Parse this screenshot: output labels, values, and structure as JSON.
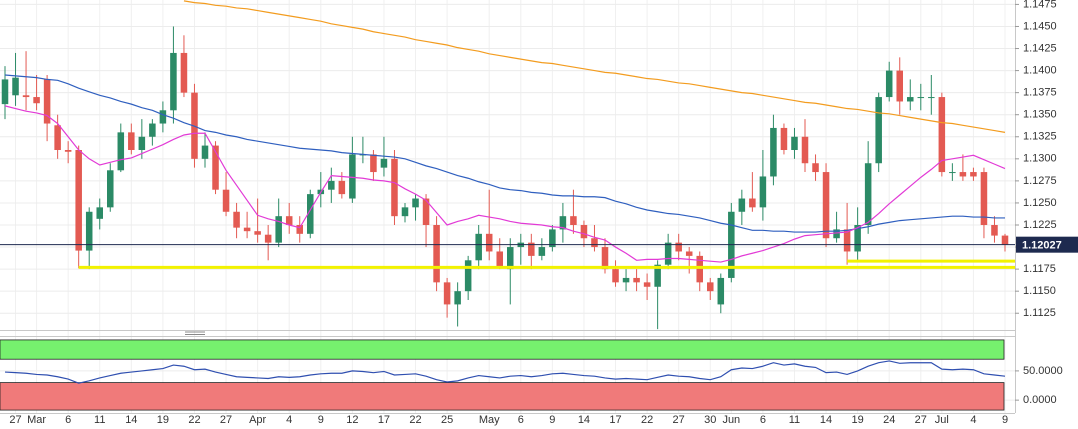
{
  "chart_data": [
    {
      "type": "candlestick",
      "categories": [
        null,
        "27",
        null,
        "Mar",
        null,
        null,
        "6",
        null,
        null,
        "11",
        null,
        null,
        "14",
        null,
        null,
        "19",
        null,
        null,
        "22",
        null,
        null,
        "27",
        null,
        null,
        "Apr",
        null,
        null,
        "4",
        null,
        null,
        "9",
        null,
        null,
        "12",
        null,
        null,
        "17",
        null,
        null,
        "22",
        null,
        null,
        "25",
        null,
        null,
        null,
        "May",
        null,
        null,
        "6",
        null,
        null,
        "9",
        null,
        null,
        "14",
        null,
        null,
        "17",
        null,
        null,
        "22",
        null,
        null,
        "27",
        null,
        null,
        "30",
        null,
        "Jun",
        null,
        null,
        "6",
        null,
        null,
        "11",
        null,
        null,
        "14",
        null,
        null,
        "19",
        null,
        null,
        "24",
        null,
        null,
        "27",
        null,
        "Jul",
        null,
        null,
        "4",
        null,
        null,
        "9"
      ],
      "open": [
        1.1362,
        1.1372,
        1.1372,
        1.137,
        1.139,
        1.1338,
        1.131,
        1.131,
        1.1196,
        1.1232,
        1.1245,
        1.1287,
        1.133,
        1.131,
        1.1325,
        1.134,
        1.1355,
        1.142,
        1.1375,
        1.13,
        1.1315,
        1.1265,
        1.124,
        1.1222,
        1.1218,
        1.1214,
        1.1205,
        1.1235,
        1.1225,
        1.1215,
        1.126,
        1.1265,
        1.1275,
        1.1255,
        1.1305,
        1.1305,
        1.129,
        1.13,
        1.1235,
        1.1245,
        1.1255,
        1.1225,
        1.116,
        1.1135,
        1.115,
        1.1185,
        1.1215,
        1.1195,
        1.1175,
        1.12,
        1.1205,
        1.119,
        1.12,
        1.122,
        1.1235,
        1.1225,
        1.121,
        1.12,
        1.1175,
        1.116,
        1.1165,
        1.116,
        1.1155,
        1.118,
        1.1205,
        1.1195,
        1.119,
        1.116,
        1.1135,
        1.1165,
        1.124,
        1.1255,
        1.1245,
        1.128,
        1.1335,
        1.131,
        1.1325,
        1.1295,
        1.1285,
        1.121,
        1.122,
        1.1195,
        1.1225,
        1.1295,
        1.137,
        1.14,
        1.1365,
        1.137,
        1.137,
        1.137,
        1.1285,
        1.1285,
        1.1285,
        1.1285,
        1.1225,
        1.1213
      ],
      "high": [
        1.1405,
        1.142,
        1.1422,
        1.1395,
        1.1395,
        1.135,
        1.132,
        1.1315,
        1.1245,
        1.1255,
        1.1295,
        1.134,
        1.134,
        1.1345,
        1.1345,
        1.1365,
        1.145,
        1.144,
        1.1385,
        1.133,
        1.132,
        1.1285,
        1.125,
        1.124,
        1.1255,
        1.1225,
        1.1255,
        1.125,
        1.1235,
        1.1265,
        1.1285,
        1.129,
        1.1285,
        1.1325,
        1.1325,
        1.131,
        1.1325,
        1.131,
        1.125,
        1.126,
        1.126,
        1.1235,
        1.1165,
        1.116,
        1.119,
        1.1225,
        1.1265,
        1.121,
        1.121,
        1.1215,
        1.1215,
        1.121,
        1.1225,
        1.125,
        1.1265,
        1.123,
        1.1225,
        1.121,
        1.1185,
        1.1175,
        1.1175,
        1.117,
        1.1185,
        1.1215,
        1.1215,
        1.12,
        1.1195,
        1.1165,
        1.117,
        1.125,
        1.1265,
        1.1285,
        1.131,
        1.135,
        1.134,
        1.1335,
        1.1345,
        1.1305,
        1.1295,
        1.124,
        1.125,
        1.1245,
        1.132,
        1.1375,
        1.141,
        1.1415,
        1.139,
        1.1385,
        1.1395,
        1.1375,
        1.1295,
        1.1305,
        1.129,
        1.129,
        1.1235,
        1.1215
      ],
      "low": [
        1.1345,
        1.136,
        1.1355,
        1.1355,
        1.132,
        1.13,
        1.1295,
        1.1176,
        1.1175,
        1.122,
        1.124,
        1.1285,
        1.1305,
        1.13,
        1.1315,
        1.133,
        1.134,
        1.137,
        1.129,
        1.129,
        1.126,
        1.1235,
        1.121,
        1.121,
        1.1205,
        1.1185,
        1.12,
        1.1215,
        1.1205,
        1.121,
        1.1245,
        1.125,
        1.1255,
        1.125,
        1.1295,
        1.1275,
        1.128,
        1.1225,
        1.1228,
        1.123,
        1.12,
        1.115,
        1.112,
        1.111,
        1.114,
        1.1175,
        1.1185,
        1.1175,
        1.1135,
        1.118,
        1.1175,
        1.1185,
        1.1195,
        1.1205,
        1.1215,
        1.12,
        1.1195,
        1.117,
        1.1155,
        1.115,
        1.115,
        1.114,
        1.1107,
        1.1175,
        1.1185,
        1.117,
        1.115,
        1.114,
        1.1125,
        1.116,
        1.1225,
        1.124,
        1.123,
        1.127,
        1.1305,
        1.13,
        1.1285,
        1.1275,
        1.12,
        1.1205,
        1.118,
        1.1185,
        1.1215,
        1.1285,
        1.1365,
        1.135,
        1.1355,
        1.1355,
        1.135,
        1.128,
        1.1275,
        1.1275,
        1.1275,
        1.121,
        1.1205,
        1.1195
      ],
      "close": [
        1.139,
        1.1392,
        1.137,
        1.1363,
        1.134,
        1.131,
        1.1308,
        1.1196,
        1.124,
        1.1245,
        1.1287,
        1.133,
        1.131,
        1.1325,
        1.134,
        1.1355,
        1.142,
        1.1375,
        1.13,
        1.1315,
        1.1265,
        1.124,
        1.1222,
        1.1218,
        1.1214,
        1.1205,
        1.1235,
        1.1225,
        1.1215,
        1.126,
        1.1265,
        1.1275,
        1.126,
        1.1305,
        1.1305,
        1.1285,
        1.13,
        1.1235,
        1.1245,
        1.1255,
        1.1225,
        1.116,
        1.1135,
        1.115,
        1.1185,
        1.1215,
        1.1195,
        1.1178,
        1.12,
        1.1205,
        1.119,
        1.12,
        1.122,
        1.1235,
        1.1225,
        1.121,
        1.12,
        1.1175,
        1.116,
        1.1165,
        1.116,
        1.1155,
        1.118,
        1.1205,
        1.1195,
        1.119,
        1.116,
        1.115,
        1.1165,
        1.124,
        1.1255,
        1.1245,
        1.128,
        1.1335,
        1.131,
        1.1325,
        1.1295,
        1.1285,
        1.121,
        1.122,
        1.1195,
        1.1225,
        1.1295,
        1.137,
        1.14,
        1.1365,
        1.137,
        1.137,
        1.137,
        1.1285,
        1.1285,
        1.128,
        1.128,
        1.1225,
        1.1213,
        1.12027
      ],
      "up_color": "#2b8a66",
      "down_color": "#e35a52",
      "series": [
        {
          "color": "#f39c1f",
          "values": [
            null,
            null,
            null,
            null,
            null,
            null,
            null,
            null,
            null,
            null,
            null,
            null,
            null,
            null,
            null,
            null,
            null,
            1.1479,
            1.1477,
            1.1476,
            1.1474,
            1.1473,
            1.1471,
            1.147,
            1.1468,
            1.1466,
            1.1464,
            1.1462,
            1.146,
            1.1458,
            1.1456,
            1.1453,
            1.1451,
            1.1449,
            1.1447,
            1.1444,
            1.1442,
            1.144,
            1.1438,
            1.1435,
            1.1433,
            1.1431,
            1.1429,
            1.1426,
            1.1424,
            1.1422,
            1.1419,
            1.1417,
            1.1415,
            1.1413,
            1.1411,
            1.1409,
            1.1408,
            1.1406,
            1.1404,
            1.1402,
            1.14,
            1.1398,
            1.1397,
            1.1395,
            1.1393,
            1.1391,
            1.139,
            1.1388,
            1.1386,
            1.1385,
            1.1383,
            1.1381,
            1.1379,
            1.1377,
            1.1375,
            1.1374,
            1.1372,
            1.137,
            1.1368,
            1.1366,
            1.1364,
            1.1363,
            1.1361,
            1.1359,
            1.1357,
            1.1356,
            1.1354,
            1.1352,
            1.1351,
            1.1349,
            1.1347,
            1.1345,
            1.1343,
            1.1341,
            1.134,
            1.1338,
            1.1336,
            1.1334,
            1.1332,
            1.133
          ]
        },
        {
          "color": "#2f5fbf",
          "values": [
            1.1395,
            1.1394,
            1.1393,
            1.1392,
            1.139,
            1.1389,
            1.1385,
            1.138,
            1.1376,
            1.1372,
            1.1369,
            1.1365,
            1.1362,
            1.1358,
            1.1355,
            1.135,
            1.1346,
            1.1341,
            1.1337,
            1.1332,
            1.133,
            1.1327,
            1.1325,
            1.1322,
            1.132,
            1.1318,
            1.1316,
            1.1314,
            1.1312,
            1.1311,
            1.131,
            1.1309,
            1.1307,
            1.1306,
            1.1305,
            1.1304,
            1.1303,
            1.1302,
            1.13,
            1.1296,
            1.1292,
            1.1289,
            1.1285,
            1.1281,
            1.1278,
            1.1274,
            1.1271,
            1.1267,
            1.1265,
            1.1264,
            1.1262,
            1.1261,
            1.1259,
            1.1258,
            1.1258,
            1.1257,
            1.1257,
            1.1256,
            1.1252,
            1.1249,
            1.1245,
            1.1242,
            1.124,
            1.1238,
            1.1237,
            1.1235,
            1.1233,
            1.123,
            1.1227,
            1.1225,
            1.1222,
            1.1219,
            1.1219,
            1.1218,
            1.1218,
            1.1217,
            1.1217,
            1.1217,
            1.1218,
            1.1218,
            1.1219,
            1.1221,
            1.1223,
            1.1226,
            1.1228,
            1.123,
            1.1231,
            1.1232,
            1.1233,
            1.1234,
            1.1235,
            1.1235,
            1.1234,
            1.1234,
            1.1233,
            1.1233
          ]
        },
        {
          "color": "#e23ad6",
          "values": [
            1.136,
            1.1357,
            1.1354,
            1.1352,
            1.1349,
            1.134,
            1.1325,
            1.131,
            1.13,
            1.1293,
            1.1296,
            1.1299,
            1.1301,
            1.1306,
            1.1311,
            1.1316,
            1.1322,
            1.1327,
            1.1329,
            1.1329,
            1.1308,
            1.1287,
            1.127,
            1.1253,
            1.1236,
            1.1232,
            1.1229,
            1.1225,
            1.1222,
            1.1242,
            1.1262,
            1.1281,
            1.128,
            1.1279,
            1.1278,
            1.1276,
            1.1275,
            1.1273,
            1.1266,
            1.126,
            1.1253,
            1.1239,
            1.1225,
            1.1229,
            1.1232,
            1.1236,
            1.1234,
            1.1232,
            1.1229,
            1.1227,
            1.1226,
            1.1225,
            1.1223,
            1.1222,
            1.1218,
            1.1215,
            1.1211,
            1.1208,
            1.12,
            1.1193,
            1.1185,
            1.1186,
            1.1186,
            1.1187,
            1.1187,
            1.1186,
            1.1185,
            1.1184,
            1.1183,
            1.1186,
            1.119,
            1.1193,
            1.1196,
            1.12,
            1.1204,
            1.1209,
            1.1213,
            1.1214,
            1.1215,
            1.1216,
            1.1217,
            1.1222,
            1.1228,
            1.1238,
            1.1249,
            1.1259,
            1.1269,
            1.1279,
            1.1288,
            1.1298,
            1.13,
            1.1302,
            1.1304,
            1.1299,
            1.1294,
            1.1289
          ]
        }
      ],
      "levels": [
        {
          "value": 1.1177,
          "from": 7,
          "color": "#f2f200"
        },
        {
          "value": 1.1184,
          "from": 80,
          "color": "#f2f200"
        }
      ],
      "last_price": 1.12027,
      "ylim": [
        1.1106,
        1.148
      ],
      "yticks": [
        1.1125,
        {
          "value": 1.115,
          "label": "1.1150"
        },
        1.1175,
        {
          "value": 1.12,
          "label": "1.1200"
        },
        1.1225,
        {
          "value": 1.125,
          "label": "1.1250"
        },
        1.1275,
        {
          "value": 1.13,
          "label": "1.1300"
        },
        1.1325,
        {
          "value": 1.135,
          "label": "1.1350"
        },
        1.1375,
        {
          "value": 1.14,
          "label": "1.1400"
        },
        1.1425,
        {
          "value": 1.145,
          "label": "1.1450"
        },
        1.1475
      ],
      "grid": true
    },
    {
      "type": "line",
      "series": [
        {
          "color": "#2f4fb0",
          "values": [
            48,
            47,
            46,
            44,
            43,
            40,
            36,
            29,
            33,
            38,
            42,
            46,
            48,
            50,
            52,
            54,
            60,
            58,
            52,
            53,
            48,
            44,
            40,
            39,
            38,
            37,
            40,
            39,
            40,
            43,
            45,
            46,
            46,
            50,
            49,
            47,
            49,
            43,
            44,
            45,
            41,
            35,
            31,
            33,
            38,
            42,
            40,
            38,
            41,
            42,
            40,
            42,
            45,
            46,
            44,
            42,
            41,
            38,
            36,
            37,
            36,
            35,
            39,
            43,
            41,
            40,
            37,
            35,
            40,
            52,
            55,
            54,
            58,
            64,
            60,
            62,
            58,
            56,
            47,
            48,
            44,
            50,
            58,
            64,
            67,
            63,
            64,
            64,
            64,
            53,
            52,
            53,
            52,
            45,
            43,
            41
          ]
        }
      ],
      "bands": [
        {
          "from": 70,
          "to": 103,
          "color": "#76f06e"
        },
        {
          "from": -17,
          "to": 30,
          "color": "#f07a7a"
        }
      ],
      "ylim": [
        -22,
        108
      ],
      "yticks": [
        {
          "value": 50,
          "label": "50.0000"
        },
        {
          "value": 0,
          "label": "0.0000"
        }
      ]
    }
  ]
}
